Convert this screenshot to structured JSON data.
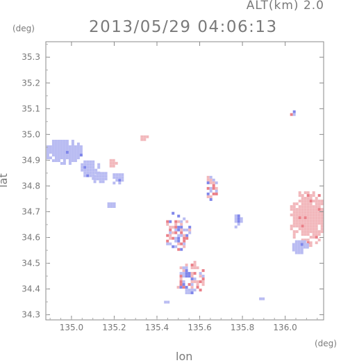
{
  "header": {
    "alt_label": "ALT(km) 2.0",
    "timestamp": "2013/05/29 04:06:13",
    "y_unit": "(deg)",
    "x_unit": "(deg)"
  },
  "chart_data": {
    "type": "heatmap",
    "xlabel": "lon",
    "ylabel": "lat",
    "xlim": [
      134.88,
      136.18
    ],
    "ylim": [
      34.28,
      35.36
    ],
    "xticks": [
      135.0,
      135.2,
      135.4,
      135.6,
      135.8,
      136.0
    ],
    "xtick_labels": [
      "135.0",
      "135.2",
      "135.4",
      "135.6",
      "135.8",
      "136.0"
    ],
    "yticks": [
      34.3,
      34.4,
      34.5,
      34.6,
      34.7,
      34.8,
      34.9,
      35.0,
      35.1,
      35.2,
      35.3
    ],
    "ytick_labels": [
      "34.3",
      "34.4",
      "34.5",
      "34.6",
      "34.7",
      "34.8",
      "34.9",
      "35.0",
      "35.1",
      "35.2",
      "35.3"
    ],
    "colors": {
      "negative": "#b9bcf2",
      "positive": "#f2b8bc",
      "strong_negative": "#7f86ea",
      "strong_positive": "#ea7f88"
    },
    "echo_regions": [
      {
        "lon": 134.96,
        "lat": 34.94,
        "rlon": 0.09,
        "rlat": 0.05,
        "sign": -1
      },
      {
        "lon": 135.08,
        "lat": 34.87,
        "rlon": 0.05,
        "rlat": 0.04,
        "sign": -1
      },
      {
        "lon": 135.13,
        "lat": 34.84,
        "rlon": 0.04,
        "rlat": 0.025,
        "sign": -1
      },
      {
        "lon": 135.21,
        "lat": 34.835,
        "rlon": 0.03,
        "rlat": 0.025,
        "sign": -1
      },
      {
        "lon": 135.18,
        "lat": 34.735,
        "rlon": 0.025,
        "rlat": 0.012,
        "sign": -1
      },
      {
        "lon": 135.185,
        "lat": 34.895,
        "rlon": 0.02,
        "rlat": 0.02,
        "sign": 1
      },
      {
        "lon": 135.33,
        "lat": 34.995,
        "rlon": 0.02,
        "rlat": 0.012,
        "sign": 1
      },
      {
        "lon": 135.49,
        "lat": 34.63,
        "rlon": 0.06,
        "rlat": 0.08,
        "sign": 0
      },
      {
        "lon": 135.55,
        "lat": 34.45,
        "rlon": 0.07,
        "rlat": 0.07,
        "sign": 0
      },
      {
        "lon": 135.65,
        "lat": 34.8,
        "rlon": 0.03,
        "rlat": 0.05,
        "sign": 0
      },
      {
        "lon": 135.77,
        "lat": 34.67,
        "rlon": 0.02,
        "rlat": 0.03,
        "sign": -1
      },
      {
        "lon": 136.1,
        "lat": 34.68,
        "rlon": 0.09,
        "rlat": 0.11,
        "sign": 1
      },
      {
        "lon": 136.06,
        "lat": 34.57,
        "rlon": 0.04,
        "rlat": 0.03,
        "sign": -1
      },
      {
        "lon": 136.03,
        "lat": 35.09,
        "rlon": 0.02,
        "rlat": 0.025,
        "sign": 0
      },
      {
        "lon": 135.88,
        "lat": 34.37,
        "rlon": 0.015,
        "rlat": 0.008,
        "sign": -1
      },
      {
        "lon": 135.44,
        "lat": 34.355,
        "rlon": 0.02,
        "rlat": 0.01,
        "sign": -1
      }
    ]
  }
}
